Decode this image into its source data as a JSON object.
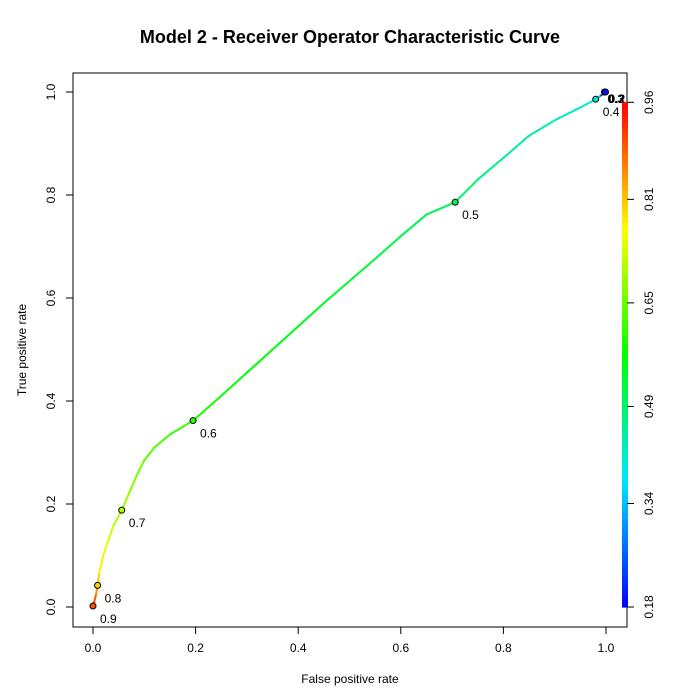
{
  "chart_data": {
    "type": "line",
    "title": "Model 2 - Receiver Operator Characteristic Curve",
    "xlabel": "False positive rate",
    "ylabel": "True positive rate",
    "xlim": [
      0,
      1
    ],
    "ylim": [
      0,
      1
    ],
    "x_ticks": [
      "0.0",
      "0.2",
      "0.4",
      "0.6",
      "0.8",
      "1.0"
    ],
    "y_ticks": [
      "0.0",
      "0.2",
      "0.4",
      "0.6",
      "0.8",
      "1.0"
    ],
    "grid": false,
    "curve": {
      "fpr": [
        0.0,
        0.003,
        0.006,
        0.009,
        0.012,
        0.02,
        0.03,
        0.04,
        0.056,
        0.07,
        0.085,
        0.1,
        0.12,
        0.15,
        0.195,
        0.25,
        0.3,
        0.35,
        0.4,
        0.45,
        0.5,
        0.55,
        0.6,
        0.65,
        0.706,
        0.75,
        0.8,
        0.85,
        0.9,
        0.95,
        0.98,
        0.99,
        1.0
      ],
      "tpr": [
        0.0,
        0.012,
        0.025,
        0.042,
        0.065,
        0.1,
        0.13,
        0.158,
        0.188,
        0.22,
        0.255,
        0.285,
        0.31,
        0.335,
        0.362,
        0.41,
        0.455,
        0.5,
        0.545,
        0.59,
        0.633,
        0.676,
        0.72,
        0.762,
        0.786,
        0.83,
        0.872,
        0.915,
        0.945,
        0.97,
        0.986,
        0.993,
        1.0
      ],
      "cutoff": [
        0.96,
        0.92,
        0.87,
        0.82,
        0.79,
        0.76,
        0.74,
        0.72,
        0.7,
        0.68,
        0.665,
        0.65,
        0.635,
        0.62,
        0.6,
        0.585,
        0.57,
        0.56,
        0.55,
        0.54,
        0.53,
        0.52,
        0.515,
        0.505,
        0.5,
        0.48,
        0.46,
        0.44,
        0.43,
        0.41,
        0.4,
        0.3,
        0.18
      ]
    },
    "cutoff_points": [
      {
        "fpr": 0.0,
        "tpr": 0.002,
        "cutoff": 0.9,
        "label": "0.9"
      },
      {
        "fpr": 0.009,
        "tpr": 0.042,
        "cutoff": 0.8,
        "label": "0.8"
      },
      {
        "fpr": 0.056,
        "tpr": 0.188,
        "cutoff": 0.7,
        "label": "0.7"
      },
      {
        "fpr": 0.195,
        "tpr": 0.362,
        "cutoff": 0.6,
        "label": "0.6"
      },
      {
        "fpr": 0.706,
        "tpr": 0.786,
        "cutoff": 0.5,
        "label": "0.5"
      },
      {
        "fpr": 0.98,
        "tpr": 0.986,
        "cutoff": 0.4,
        "label": "0.4"
      },
      {
        "fpr": 0.997,
        "tpr": 1.0,
        "cutoff": 0.3,
        "label": "0.3"
      },
      {
        "fpr": 0.999,
        "tpr": 1.0,
        "cutoff": 0.2,
        "label": "0.2"
      }
    ],
    "colorbar": {
      "range": [
        0.18,
        0.96
      ],
      "tick_labels": [
        "0.18",
        "0.34",
        "0.49",
        "0.65",
        "0.81",
        "0.96"
      ],
      "placement": "right",
      "colors": [
        "#0000ff",
        "#00e5ff",
        "#00ff00",
        "#ffff00",
        "#ff0000"
      ]
    }
  }
}
